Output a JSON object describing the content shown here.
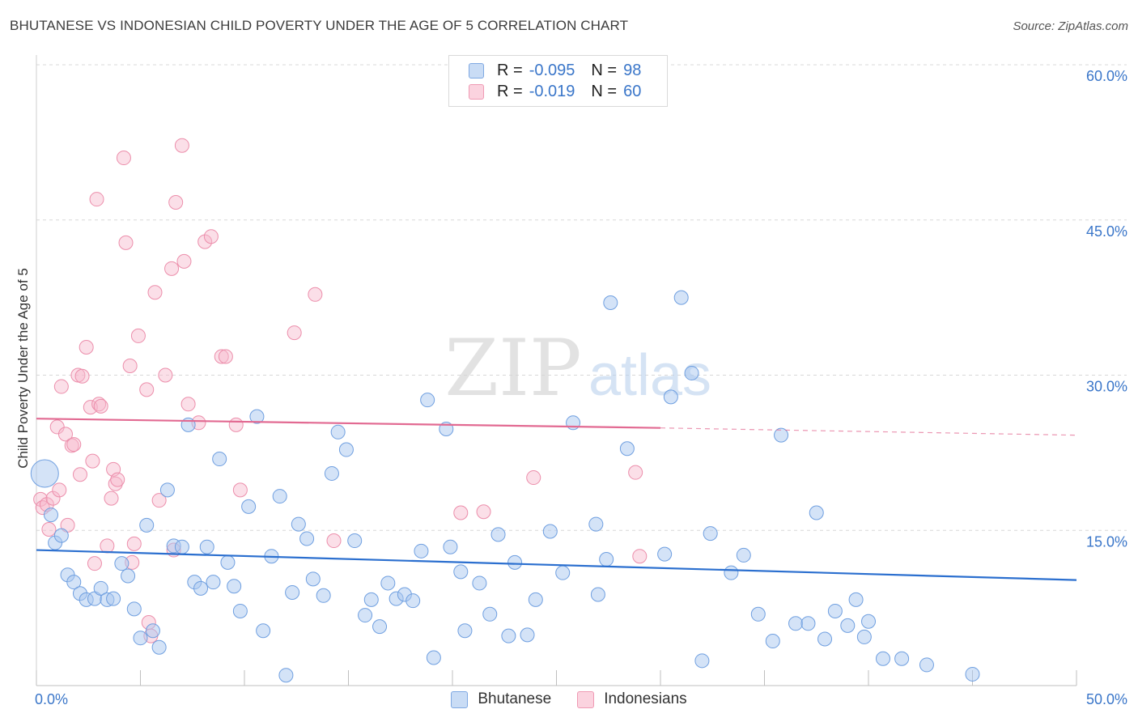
{
  "title": "BHUTANESE VS INDONESIAN CHILD POVERTY UNDER THE AGE OF 5 CORRELATION CHART",
  "source": "Source: ZipAtlas.com",
  "watermark": {
    "zip": "ZIP",
    "atlas": "atlas"
  },
  "legend_top": {
    "rows": [
      {
        "r_label": "R =",
        "r_value": "-0.095",
        "n_label": "N =",
        "n_value": "98",
        "color": "#a9c8f0"
      },
      {
        "r_label": "R =",
        "r_value": "-0.019",
        "n_label": "N =",
        "n_value": "60",
        "color": "#f7b8cb"
      }
    ]
  },
  "legend_bottom": [
    {
      "label": "Bhutanese",
      "color": "#a9c8f0"
    },
    {
      "label": "Indonesians",
      "color": "#f7b8cb"
    }
  ],
  "colors": {
    "blue_fill": "#a9c8f0",
    "blue_stroke": "#6f9fe0",
    "blue_line": "#2b6fcf",
    "pink_fill": "#f7b8cb",
    "pink_stroke": "#ec8eab",
    "pink_line": "#e26a92",
    "tick_label": "#3a76c9",
    "grid": "#d8d8d8"
  },
  "chart_data": {
    "type": "scatter",
    "title": "BHUTANESE VS INDONESIAN CHILD POVERTY UNDER THE AGE OF 5 CORRELATION CHART",
    "xlabel": "",
    "ylabel": "Child Poverty Under the Age of 5",
    "xlim": [
      0,
      50
    ],
    "ylim": [
      0,
      60
    ],
    "x_tick_labels": [
      "0.0%",
      "50.0%"
    ],
    "y_ticks": [
      15,
      30,
      45,
      60
    ],
    "y_tick_labels": [
      "15.0%",
      "30.0%",
      "45.0%",
      "60.0%"
    ],
    "grid": "horizontal dashed",
    "legend_placement": "bottom-center",
    "series": [
      {
        "name": "Bhutanese",
        "points": [
          [
            0.4,
            20.5
          ],
          [
            0.7,
            16.5
          ],
          [
            0.9,
            13.8
          ],
          [
            1.2,
            14.5
          ],
          [
            1.5,
            10.7
          ],
          [
            1.8,
            10.0
          ],
          [
            2.1,
            8.9
          ],
          [
            2.4,
            8.3
          ],
          [
            2.8,
            8.4
          ],
          [
            3.1,
            9.4
          ],
          [
            3.4,
            8.3
          ],
          [
            3.7,
            8.4
          ],
          [
            4.1,
            11.8
          ],
          [
            4.4,
            10.6
          ],
          [
            4.7,
            7.4
          ],
          [
            5.0,
            4.6
          ],
          [
            5.3,
            15.5
          ],
          [
            5.6,
            5.3
          ],
          [
            5.9,
            3.7
          ],
          [
            6.3,
            18.9
          ],
          [
            6.6,
            13.5
          ],
          [
            7.0,
            13.4
          ],
          [
            7.3,
            25.2
          ],
          [
            7.6,
            10.0
          ],
          [
            7.9,
            9.4
          ],
          [
            8.2,
            13.4
          ],
          [
            8.5,
            10.0
          ],
          [
            8.8,
            21.9
          ],
          [
            9.2,
            11.9
          ],
          [
            9.5,
            9.6
          ],
          [
            9.8,
            7.2
          ],
          [
            10.2,
            17.3
          ],
          [
            10.6,
            26.0
          ],
          [
            10.9,
            5.3
          ],
          [
            11.3,
            12.5
          ],
          [
            11.7,
            18.3
          ],
          [
            12.0,
            1.0
          ],
          [
            12.3,
            9.0
          ],
          [
            12.6,
            15.6
          ],
          [
            13.0,
            14.2
          ],
          [
            13.3,
            10.3
          ],
          [
            13.8,
            8.7
          ],
          [
            14.2,
            20.5
          ],
          [
            14.5,
            24.5
          ],
          [
            14.9,
            22.8
          ],
          [
            15.3,
            14.0
          ],
          [
            15.8,
            6.8
          ],
          [
            16.1,
            8.3
          ],
          [
            16.5,
            5.7
          ],
          [
            16.9,
            9.9
          ],
          [
            17.3,
            8.4
          ],
          [
            17.7,
            8.8
          ],
          [
            18.1,
            8.2
          ],
          [
            18.5,
            13.0
          ],
          [
            18.8,
            27.6
          ],
          [
            19.1,
            2.7
          ],
          [
            19.7,
            24.8
          ],
          [
            19.9,
            13.4
          ],
          [
            20.4,
            11.0
          ],
          [
            20.6,
            5.3
          ],
          [
            21.3,
            9.9
          ],
          [
            21.8,
            6.9
          ],
          [
            22.2,
            14.6
          ],
          [
            22.7,
            4.8
          ],
          [
            23.0,
            11.9
          ],
          [
            23.6,
            4.9
          ],
          [
            24.0,
            8.3
          ],
          [
            24.7,
            14.9
          ],
          [
            25.3,
            10.9
          ],
          [
            25.8,
            25.4
          ],
          [
            26.9,
            15.6
          ],
          [
            27.0,
            8.8
          ],
          [
            27.4,
            12.2
          ],
          [
            27.6,
            37.0
          ],
          [
            28.4,
            22.9
          ],
          [
            30.2,
            12.7
          ],
          [
            30.5,
            27.9
          ],
          [
            31.0,
            37.5
          ],
          [
            31.5,
            30.2
          ],
          [
            32.0,
            2.4
          ],
          [
            32.4,
            14.7
          ],
          [
            33.4,
            10.9
          ],
          [
            34.0,
            12.6
          ],
          [
            34.7,
            6.9
          ],
          [
            35.4,
            4.3
          ],
          [
            35.8,
            24.2
          ],
          [
            36.5,
            6.0
          ],
          [
            37.1,
            6.0
          ],
          [
            37.5,
            16.7
          ],
          [
            37.9,
            4.5
          ],
          [
            38.4,
            7.2
          ],
          [
            39.0,
            5.8
          ],
          [
            39.4,
            8.3
          ],
          [
            39.8,
            4.7
          ],
          [
            40.0,
            6.2
          ],
          [
            40.7,
            2.6
          ],
          [
            41.6,
            2.6
          ],
          [
            42.8,
            2.0
          ],
          [
            45.0,
            1.1
          ]
        ],
        "trend": {
          "x": [
            0,
            50
          ],
          "y": [
            13.1,
            10.2
          ]
        }
      },
      {
        "name": "Indonesians",
        "points": [
          [
            0.2,
            18.0
          ],
          [
            0.3,
            17.2
          ],
          [
            0.5,
            17.5
          ],
          [
            0.6,
            15.1
          ],
          [
            0.8,
            18.1
          ],
          [
            1.0,
            25.0
          ],
          [
            1.1,
            18.9
          ],
          [
            1.2,
            28.9
          ],
          [
            1.4,
            24.3
          ],
          [
            1.5,
            15.5
          ],
          [
            1.7,
            23.2
          ],
          [
            1.8,
            23.3
          ],
          [
            2.0,
            30.0
          ],
          [
            2.1,
            20.4
          ],
          [
            2.2,
            29.9
          ],
          [
            2.4,
            32.7
          ],
          [
            2.6,
            26.9
          ],
          [
            2.7,
            21.7
          ],
          [
            2.8,
            11.8
          ],
          [
            2.9,
            47.0
          ],
          [
            3.0,
            27.2
          ],
          [
            3.1,
            27.0
          ],
          [
            3.4,
            13.5
          ],
          [
            3.6,
            18.1
          ],
          [
            3.7,
            20.9
          ],
          [
            3.8,
            19.5
          ],
          [
            3.9,
            19.9
          ],
          [
            4.2,
            51.0
          ],
          [
            4.3,
            42.8
          ],
          [
            4.5,
            30.9
          ],
          [
            4.6,
            11.9
          ],
          [
            4.7,
            13.7
          ],
          [
            4.9,
            33.8
          ],
          [
            5.3,
            28.6
          ],
          [
            5.4,
            6.1
          ],
          [
            5.5,
            4.8
          ],
          [
            5.7,
            38.0
          ],
          [
            5.9,
            17.9
          ],
          [
            6.2,
            30.0
          ],
          [
            6.5,
            40.3
          ],
          [
            6.6,
            13.1
          ],
          [
            6.7,
            46.7
          ],
          [
            7.0,
            52.2
          ],
          [
            7.1,
            41.0
          ],
          [
            7.3,
            27.2
          ],
          [
            7.8,
            25.4
          ],
          [
            8.1,
            42.9
          ],
          [
            8.4,
            43.4
          ],
          [
            8.9,
            31.8
          ],
          [
            9.1,
            31.8
          ],
          [
            9.6,
            25.2
          ],
          [
            9.8,
            18.9
          ],
          [
            12.4,
            34.1
          ],
          [
            13.4,
            37.8
          ],
          [
            14.3,
            14.0
          ],
          [
            20.4,
            16.7
          ],
          [
            21.5,
            16.8
          ],
          [
            23.9,
            20.1
          ],
          [
            28.8,
            20.6
          ],
          [
            29.0,
            12.5
          ]
        ],
        "trend": {
          "x": [
            0,
            30
          ],
          "y": [
            25.8,
            24.9
          ]
        },
        "trend_extension": {
          "x": [
            30,
            50
          ],
          "y": [
            24.9,
            24.2
          ]
        }
      }
    ]
  }
}
